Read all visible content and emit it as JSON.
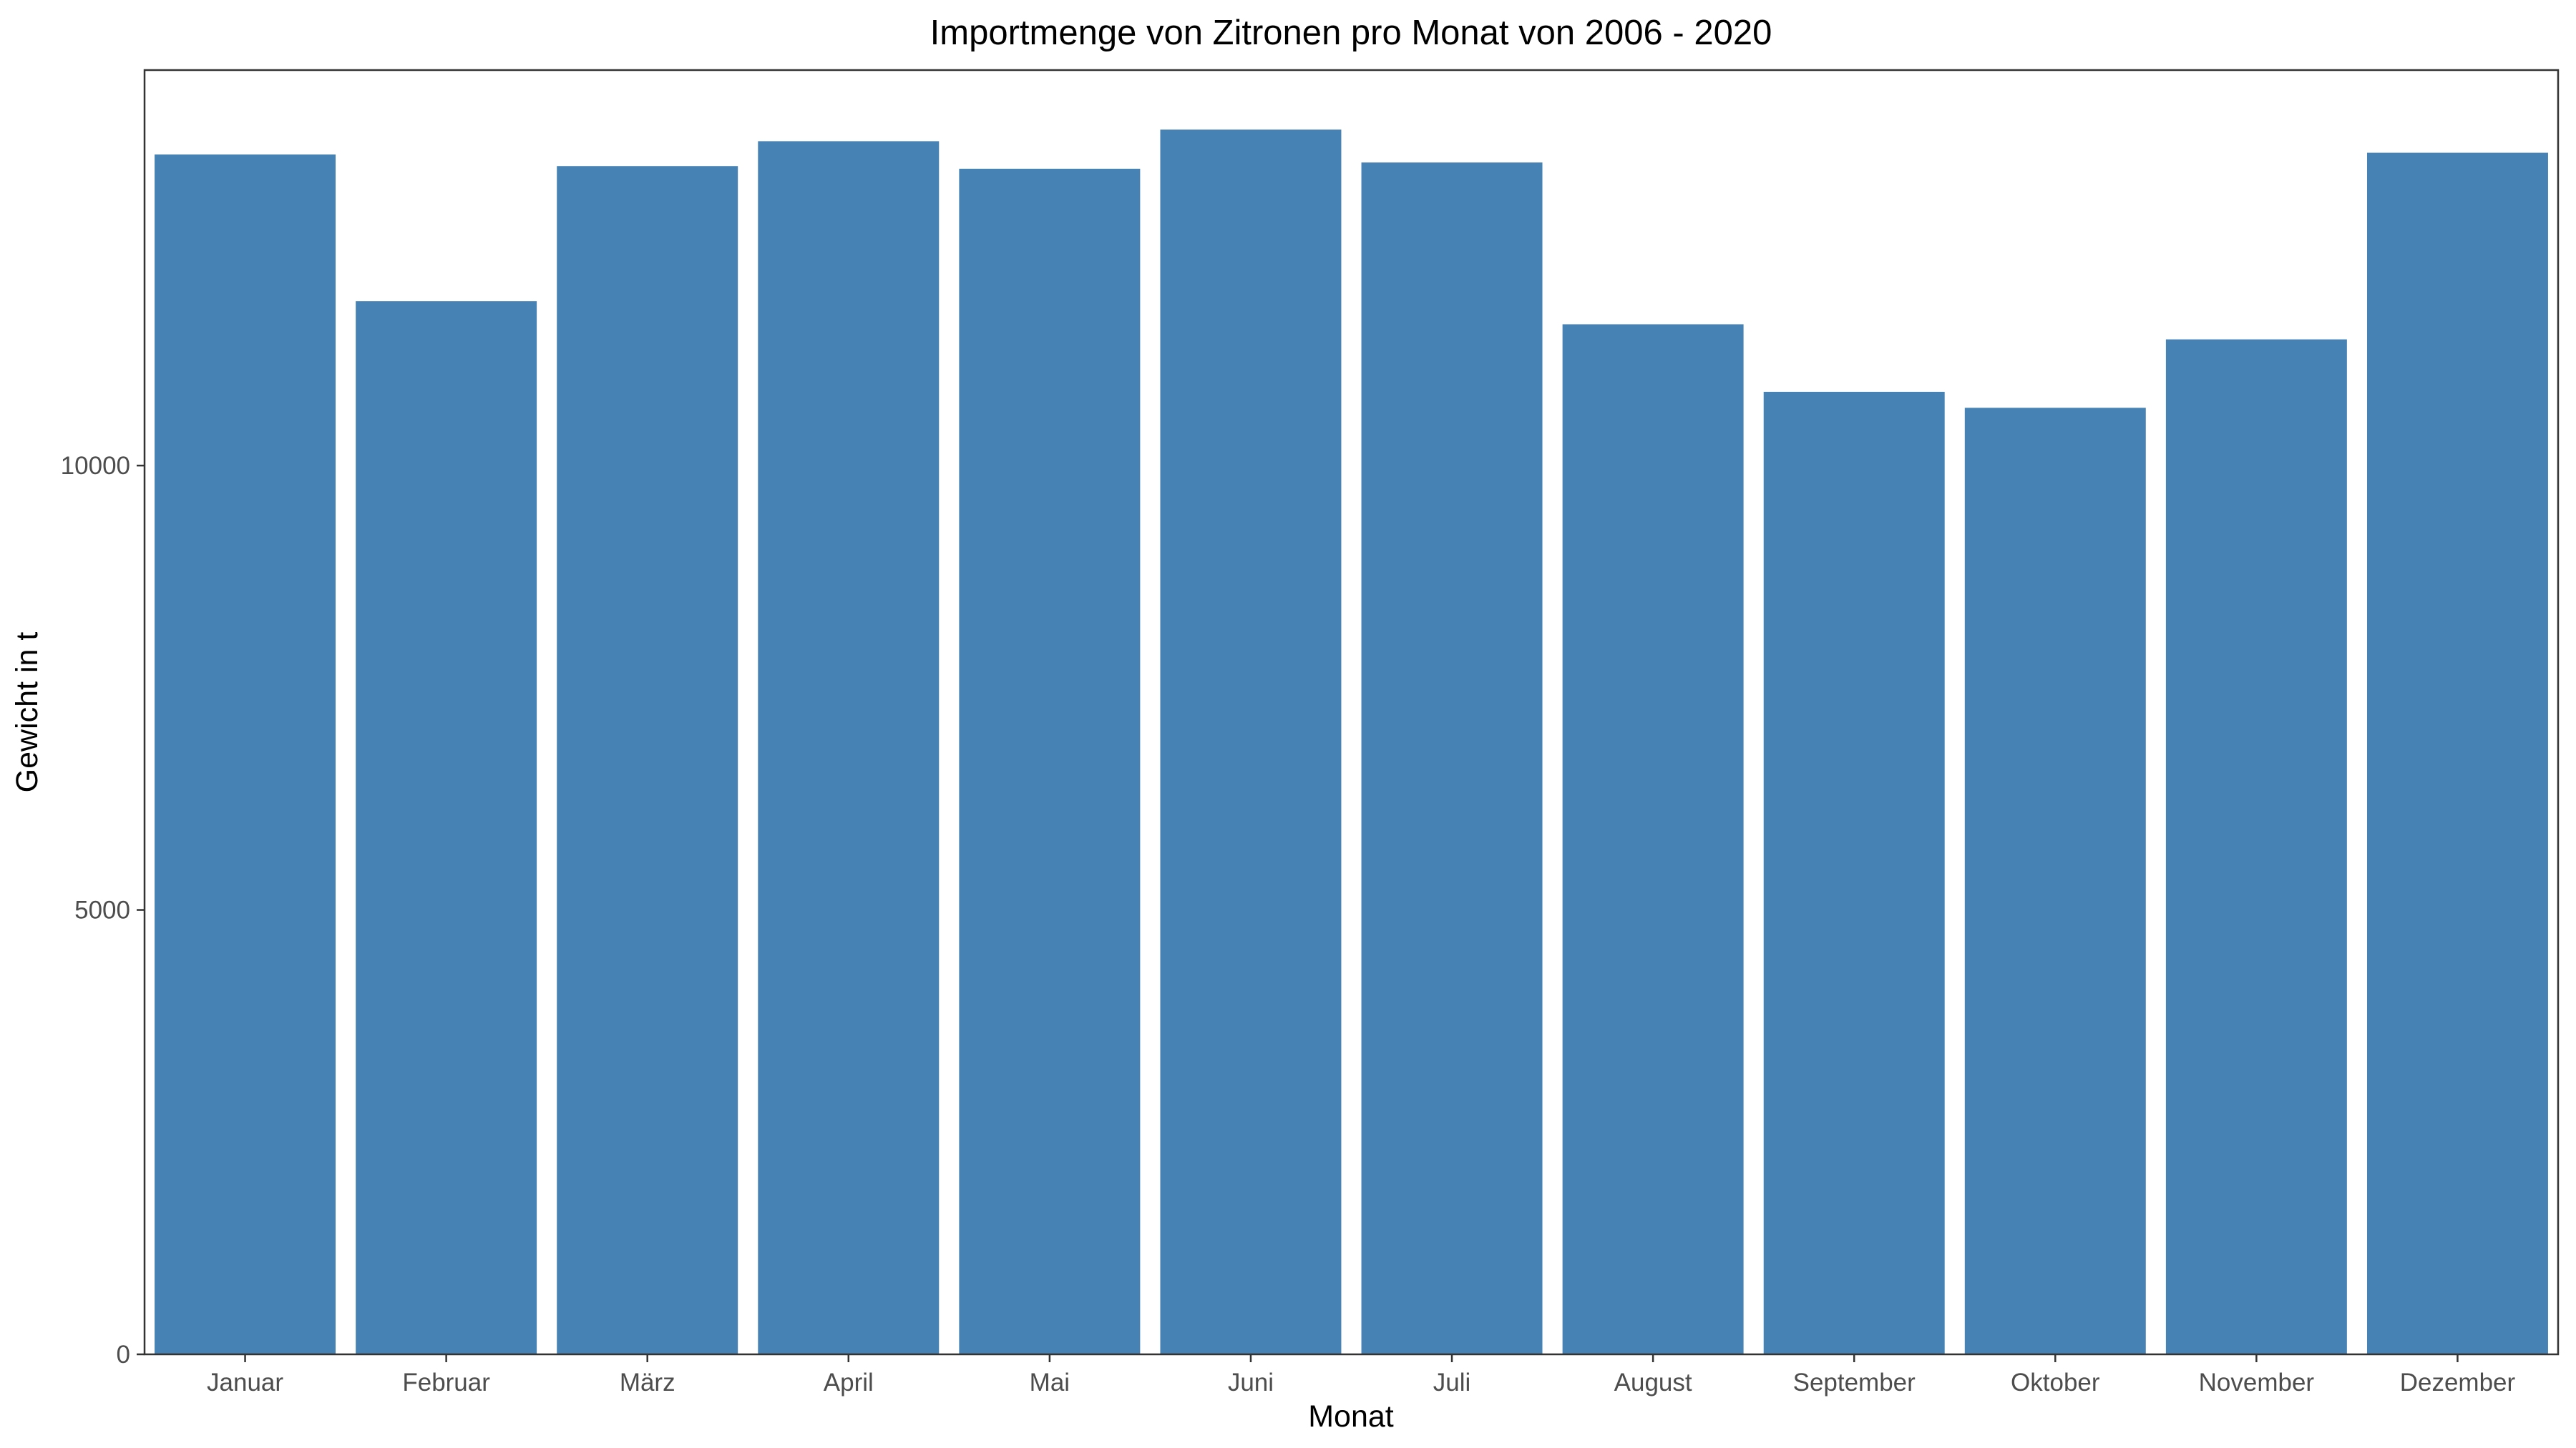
{
  "chart_data": {
    "type": "bar",
    "title": "Importmenge von Zitronen pro Monat von 2006 - 2020",
    "xlabel": "Monat",
    "ylabel": "Gewicht in t",
    "categories": [
      "Januar",
      "Februar",
      "März",
      "April",
      "Mai",
      "Juni",
      "Juli",
      "August",
      "September",
      "Oktober",
      "November",
      "Dezember"
    ],
    "values": [
      13500,
      11850,
      13370,
      13650,
      13340,
      13780,
      13410,
      11590,
      10830,
      10650,
      11420,
      13520
    ],
    "ylim": [
      0,
      14450
    ],
    "yticks": [
      0,
      5000,
      10000
    ],
    "ytick_labels": [
      "0",
      "5000",
      "10000"
    ],
    "bar_color": "#4682B4",
    "grid": false,
    "legend": "none"
  }
}
